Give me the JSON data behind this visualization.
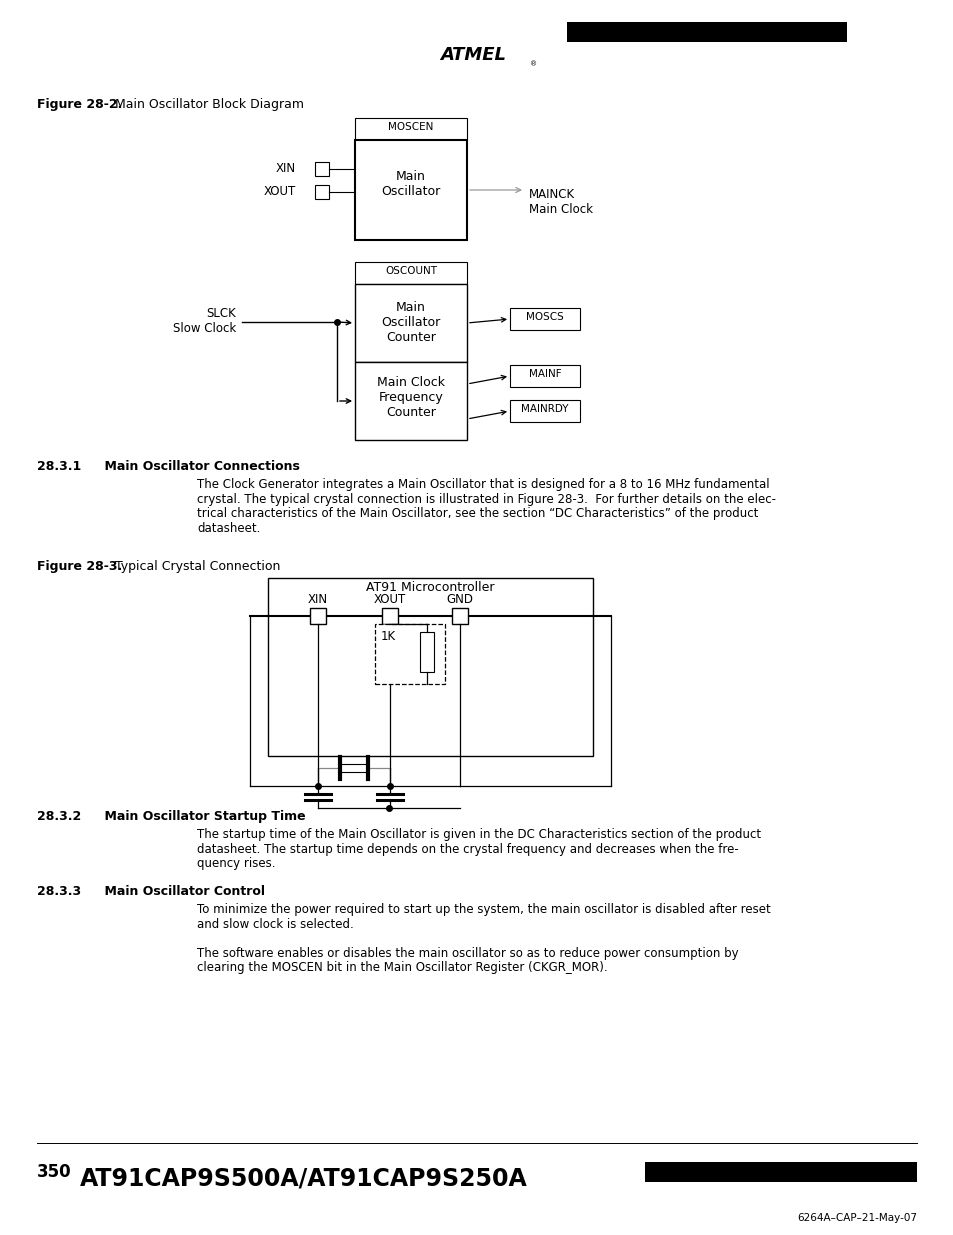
{
  "page_bg": "#ffffff",
  "title_text": "AT91CAP9S500A/AT91CAP9S250A",
  "page_number": "350",
  "footer_ref": "6264A–CAP–21-May-07",
  "fig28_2_label": "Figure 28-2.",
  "fig28_2_desc": "Main Oscillator Block Diagram",
  "fig28_3_label": "Figure 28-3.",
  "fig28_3_desc": "Typical Crystal Connection",
  "section_281": "28.3.1",
  "section_281_title": "Main Oscillator Connections",
  "section_281_text1": "The Clock Generator integrates a Main Oscillator that is designed for a 8 to 16 MHz fundamental",
  "section_281_text2": "crystal. The typical crystal connection is illustrated in Figure 28-3.  For further details on the elec-",
  "section_281_text3": "trical characteristics of the Main Oscillator, see the section “DC Characteristics” of the product",
  "section_281_text4": "datasheet.",
  "section_282": "28.3.2",
  "section_282_title": "Main Oscillator Startup Time",
  "section_282_text1": "The startup time of the Main Oscillator is given in the DC Characteristics section of the product",
  "section_282_text2": "datasheet. The startup time depends on the crystal frequency and decreases when the fre-",
  "section_282_text3": "quency rises.",
  "section_283": "28.3.3",
  "section_283_title": "Main Oscillator Control",
  "section_283_text1a": "To minimize the power required to start up the system, the main oscillator is disabled after reset",
  "section_283_text1b": "and slow clock is selected.",
  "section_283_text2a": "The software enables or disables the main oscillator so as to reduce power consumption by",
  "section_283_text2b": "clearing the MOSCEN bit in the Main Oscillator Register (CKGR_MOR)."
}
